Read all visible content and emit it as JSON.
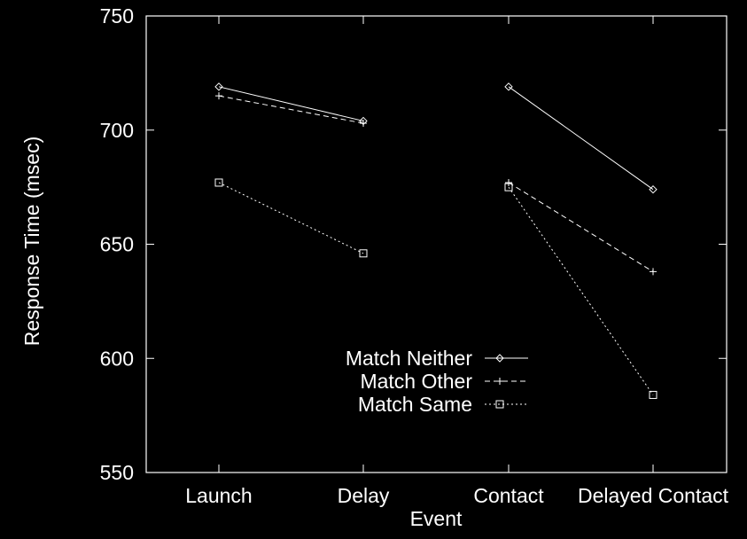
{
  "chart_data": {
    "type": "line",
    "title": "",
    "xlabel": "Event",
    "ylabel": "Response Time (msec)",
    "categories": [
      "Launch",
      "Delay",
      "Contact",
      "Delayed Contact"
    ],
    "ylim": [
      550,
      750
    ],
    "yticks": [
      550,
      600,
      650,
      700,
      750
    ],
    "grid": false,
    "legend_position": "bottom-center",
    "colors": {
      "background": "#000000",
      "foreground": "#ffffff"
    },
    "series": [
      {
        "name": "Match Neither",
        "marker": "diamond",
        "dash": "solid",
        "segments": [
          {
            "categories": [
              "Launch",
              "Delay"
            ],
            "values": [
              719,
              704
            ]
          },
          {
            "categories": [
              "Contact",
              "Delayed Contact"
            ],
            "values": [
              719,
              674
            ]
          }
        ]
      },
      {
        "name": "Match Other",
        "marker": "plus",
        "dash": "dashed",
        "segments": [
          {
            "categories": [
              "Launch",
              "Delay"
            ],
            "values": [
              715,
              703
            ]
          },
          {
            "categories": [
              "Contact",
              "Delayed Contact"
            ],
            "values": [
              677,
              638
            ]
          }
        ]
      },
      {
        "name": "Match Same",
        "marker": "square",
        "dash": "dotted",
        "segments": [
          {
            "categories": [
              "Launch",
              "Delay"
            ],
            "values": [
              677,
              646
            ]
          },
          {
            "categories": [
              "Contact",
              "Delayed Contact"
            ],
            "values": [
              675,
              584
            ]
          }
        ]
      }
    ]
  }
}
